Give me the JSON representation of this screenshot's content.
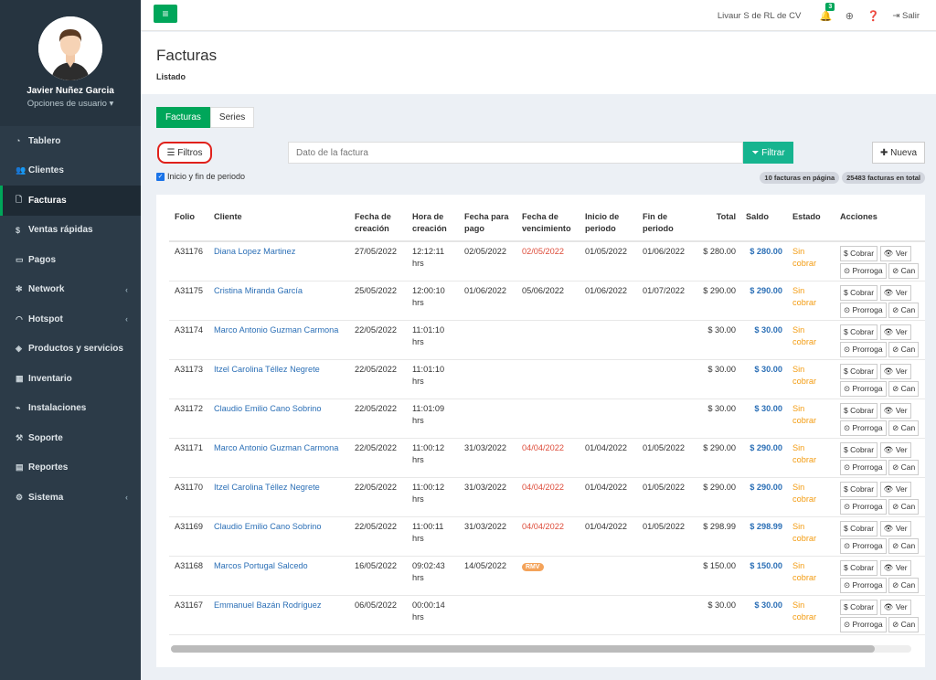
{
  "user": {
    "name": "Javier Nuñez Garcia",
    "options": "Opciones de usuario ▾"
  },
  "menu": [
    {
      "icon": "dashboard-icon",
      "glyph": "◔",
      "label": "Tablero",
      "chev": ""
    },
    {
      "icon": "users-icon",
      "glyph": "👥",
      "label": "Clientes",
      "chev": ""
    },
    {
      "icon": "file-icon",
      "glyph": "🗋",
      "label": "Facturas",
      "chev": "",
      "active": true
    },
    {
      "icon": "dollar-icon",
      "glyph": "$",
      "label": "Ventas rápidas",
      "chev": ""
    },
    {
      "icon": "money-icon",
      "glyph": "▭",
      "label": "Pagos",
      "chev": ""
    },
    {
      "icon": "network-icon",
      "glyph": "✻",
      "label": "Network",
      "chev": "‹"
    },
    {
      "icon": "wifi-icon",
      "glyph": "◠",
      "label": "Hotspot",
      "chev": "‹"
    },
    {
      "icon": "tags-icon",
      "glyph": "◈",
      "label": "Productos y servicios",
      "chev": ""
    },
    {
      "icon": "cubes-icon",
      "glyph": "▦",
      "label": "Inventario",
      "chev": ""
    },
    {
      "icon": "plug-icon",
      "glyph": "⌁",
      "label": "Instalaciones",
      "chev": ""
    },
    {
      "icon": "wrench-icon",
      "glyph": "⚒",
      "label": "Soporte",
      "chev": ""
    },
    {
      "icon": "book-icon",
      "glyph": "▤",
      "label": "Reportes",
      "chev": ""
    },
    {
      "icon": "cogs-icon",
      "glyph": "⚙",
      "label": "Sistema",
      "chev": "‹"
    }
  ],
  "topbar": {
    "company": "Livaur S de RL de CV",
    "notif_count": "3",
    "logout": "Salir"
  },
  "header": {
    "title": "Facturas",
    "subtitle": "Listado"
  },
  "tabs": [
    "Facturas",
    "Series"
  ],
  "toolbar": {
    "filtros": "Filtros",
    "search_placeholder": "Dato de la factura",
    "filtrar": "Filtrar",
    "nueva": "Nueva",
    "checkbox_label": "Inicio y fin de periodo",
    "count_page": "10 facturas en página",
    "count_total": "25483 facturas en total"
  },
  "table": {
    "headers": [
      "Folio",
      "Cliente",
      "Fecha de creación",
      "Hora de creación",
      "Fecha para pago",
      "Fecha de vencimiento",
      "Inicio de periodo",
      "Fin de periodo",
      "Total",
      "Saldo",
      "Estado",
      "Acciones"
    ],
    "actions": {
      "cobrar": "Cobrar",
      "ver": "Ver",
      "prorroga": "Prorroga",
      "cancel": "Can"
    },
    "rows": [
      {
        "folio": "A31176",
        "cliente": "Diana Lopez Martinez",
        "fc": "27/05/2022",
        "hc": "12:12:11 hrs",
        "fp": "02/05/2022",
        "fv": "02/05/2022",
        "fv_red": true,
        "ip": "01/05/2022",
        "fin": "01/06/2022",
        "total": "$ 280.00",
        "saldo": "$ 280.00",
        "estado": "Sin cobrar"
      },
      {
        "folio": "A31175",
        "cliente": "Cristina Miranda García",
        "fc": "25/05/2022",
        "hc": "12:00:10 hrs",
        "fp": "01/06/2022",
        "fv": "05/06/2022",
        "fv_red": false,
        "ip": "01/06/2022",
        "fin": "01/07/2022",
        "total": "$ 290.00",
        "saldo": "$ 290.00",
        "estado": "Sin cobrar"
      },
      {
        "folio": "A31174",
        "cliente": "Marco Antonio Guzman Carmona",
        "fc": "22/05/2022",
        "hc": "11:01:10 hrs",
        "fp": "",
        "fv": "",
        "fv_red": false,
        "ip": "",
        "fin": "",
        "total": "$ 30.00",
        "saldo": "$ 30.00",
        "estado": "Sin cobrar"
      },
      {
        "folio": "A31173",
        "cliente": "Itzel Carolina Téllez Negrete",
        "fc": "22/05/2022",
        "hc": "11:01:10 hrs",
        "fp": "",
        "fv": "",
        "fv_red": false,
        "ip": "",
        "fin": "",
        "total": "$ 30.00",
        "saldo": "$ 30.00",
        "estado": "Sin cobrar"
      },
      {
        "folio": "A31172",
        "cliente": "Claudio Emilio Cano Sobrino",
        "fc": "22/05/2022",
        "hc": "11:01:09 hrs",
        "fp": "",
        "fv": "",
        "fv_red": false,
        "ip": "",
        "fin": "",
        "total": "$ 30.00",
        "saldo": "$ 30.00",
        "estado": "Sin cobrar"
      },
      {
        "folio": "A31171",
        "cliente": "Marco Antonio Guzman Carmona",
        "fc": "22/05/2022",
        "hc": "11:00:12 hrs",
        "fp": "31/03/2022",
        "fv": "04/04/2022",
        "fv_red": true,
        "ip": "01/04/2022",
        "fin": "01/05/2022",
        "total": "$ 290.00",
        "saldo": "$ 290.00",
        "estado": "Sin cobrar"
      },
      {
        "folio": "A31170",
        "cliente": "Itzel Carolina Téllez Negrete",
        "fc": "22/05/2022",
        "hc": "11:00:12 hrs",
        "fp": "31/03/2022",
        "fv": "04/04/2022",
        "fv_red": true,
        "ip": "01/04/2022",
        "fin": "01/05/2022",
        "total": "$ 290.00",
        "saldo": "$ 290.00",
        "estado": "Sin cobrar"
      },
      {
        "folio": "A31169",
        "cliente": "Claudio Emilio Cano Sobrino",
        "fc": "22/05/2022",
        "hc": "11:00:11 hrs",
        "fp": "31/03/2022",
        "fv": "04/04/2022",
        "fv_red": true,
        "ip": "01/04/2022",
        "fin": "01/05/2022",
        "total": "$ 298.99",
        "saldo": "$ 298.99",
        "estado": "Sin cobrar"
      },
      {
        "folio": "A31168",
        "cliente": "Marcos Portugal Salcedo",
        "fc": "16/05/2022",
        "hc": "09:02:43 hrs",
        "fp": "14/05/2022",
        "fv": "",
        "fv_red": false,
        "fv_badge": "RMV",
        "ip": "",
        "fin": "",
        "total": "$ 150.00",
        "saldo": "$ 150.00",
        "estado": "Sin cobrar"
      },
      {
        "folio": "A31167",
        "cliente": "Emmanuel Bazán Rodríguez",
        "fc": "06/05/2022",
        "hc": "00:00:14 hrs",
        "fp": "",
        "fv": "",
        "fv_red": false,
        "ip": "",
        "fin": "",
        "total": "$ 30.00",
        "saldo": "$ 30.00",
        "estado": "Sin cobrar"
      }
    ]
  }
}
